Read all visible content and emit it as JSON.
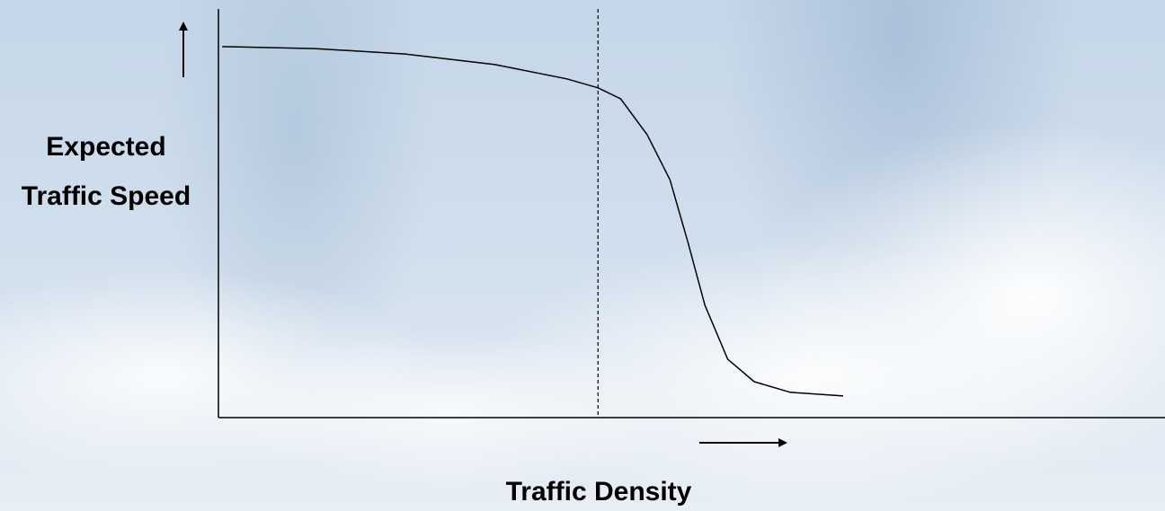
{
  "chart_data": {
    "type": "line",
    "y_label": "Expected Traffic Speed",
    "x_label": "Traffic Density",
    "x": [
      0.4,
      10.2,
      19.7,
      29.2,
      36.8,
      40.1,
      42.5,
      45.3,
      47.7,
      49.6,
      51.4,
      53.8,
      56.6,
      60.4,
      66.0
    ],
    "values": [
      90.8,
      90.3,
      89.0,
      86.4,
      82.9,
      80.7,
      78.0,
      69.2,
      58.2,
      42.9,
      27.5,
      14.3,
      8.8,
      6.2,
      5.3
    ],
    "color": "#000000",
    "reference_line_x": 40.1,
    "xlim": [
      0,
      100
    ],
    "ylim": [
      0,
      100
    ]
  }
}
